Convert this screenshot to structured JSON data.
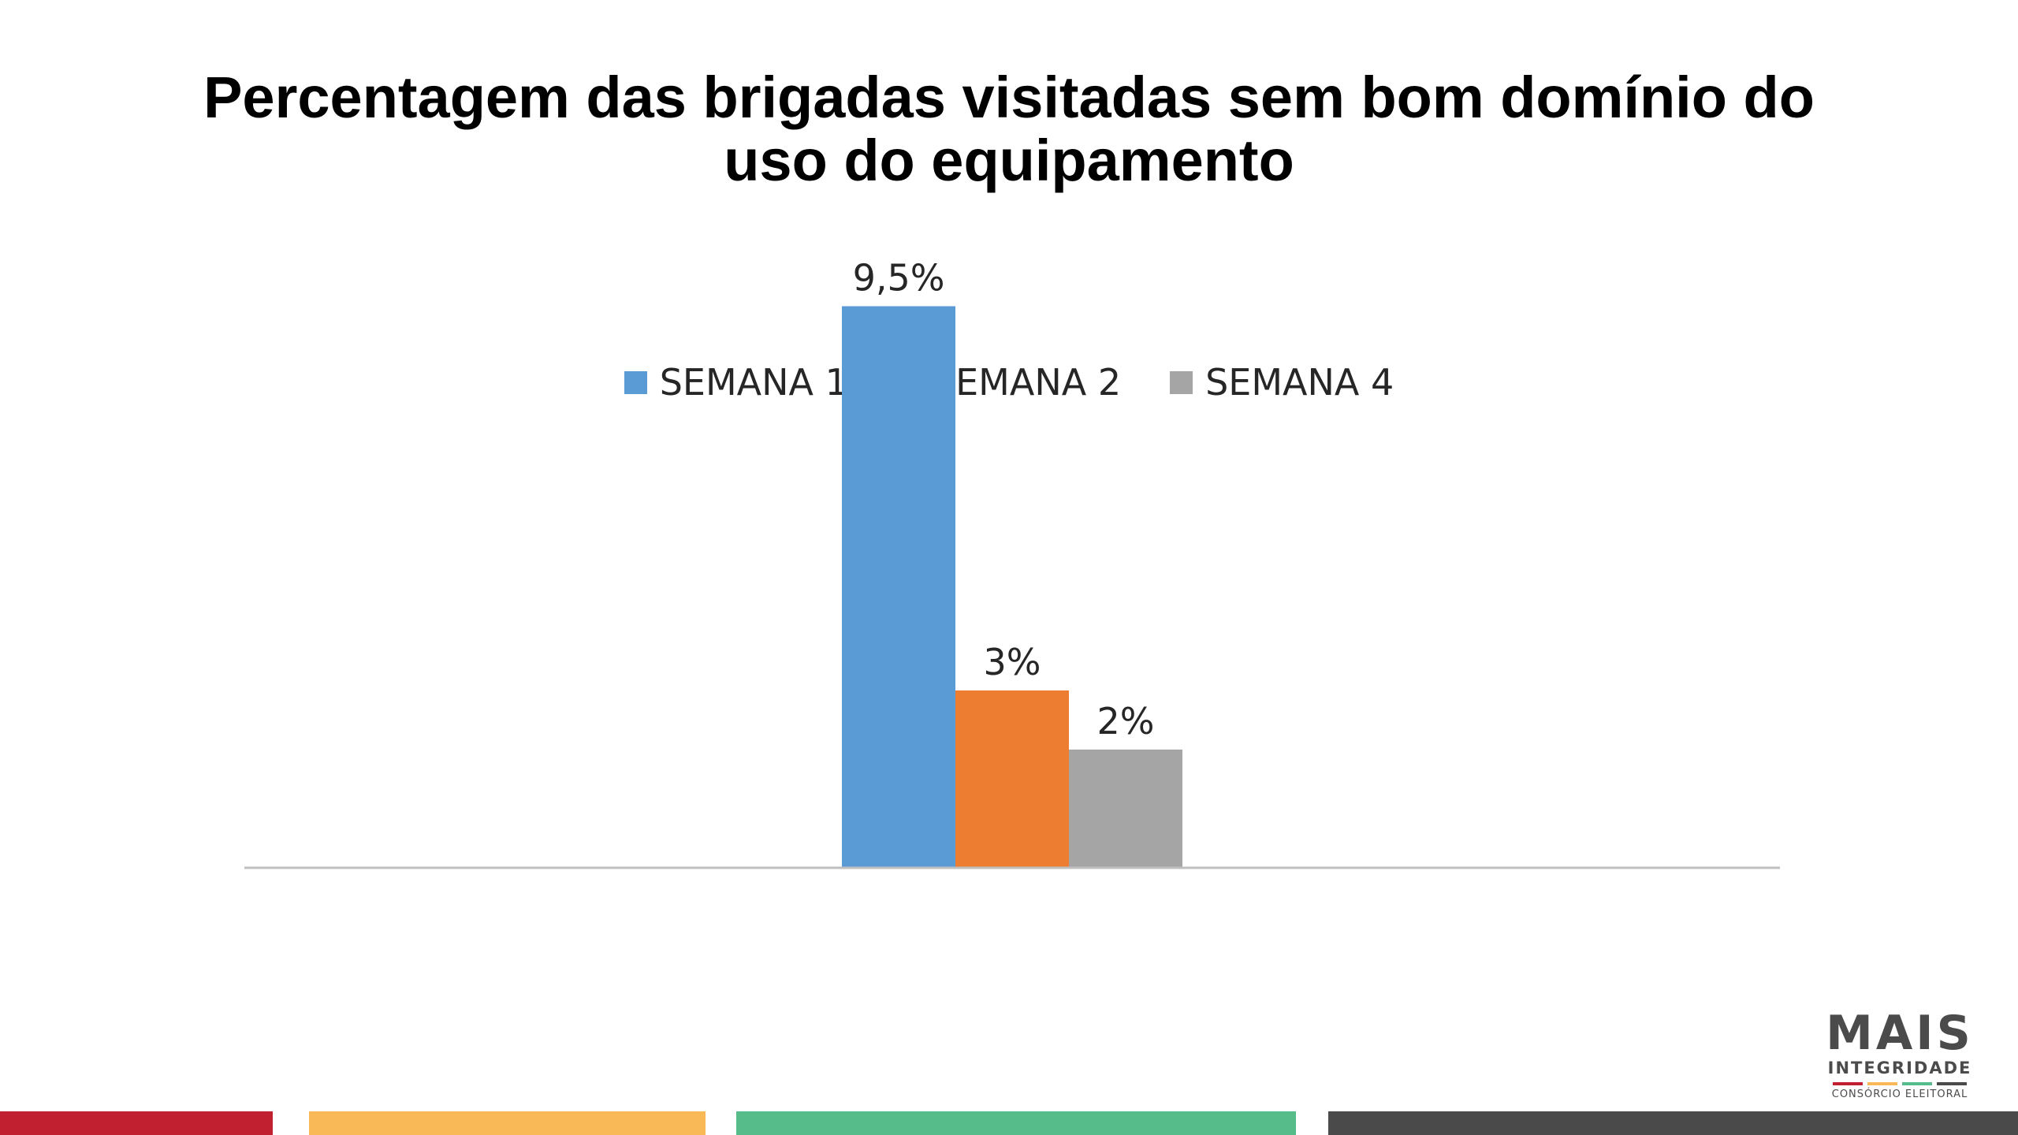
{
  "chart_data": {
    "type": "bar",
    "title": "Percentagem das brigadas visitadas sem bom domínio do uso do equipamento",
    "title_lines": [
      "Percentagem das brigadas visitadas sem bom domínio do",
      "uso do equipamento"
    ],
    "categories": [
      ""
    ],
    "series": [
      {
        "name": "SEMANA 1",
        "values": [
          9.5
        ],
        "label": "9,5%",
        "color": "#5B9BD5"
      },
      {
        "name": "SEMANA 2",
        "values": [
          3
        ],
        "label": "3%",
        "color": "#ED7D31"
      },
      {
        "name": "SEMANA 4",
        "values": [
          2
        ],
        "label": "2%",
        "color": "#A5A5A5"
      }
    ],
    "xlabel": "",
    "ylabel": "",
    "ylim": [
      0,
      10
    ],
    "grid": false,
    "legend_position": "top"
  },
  "logo": {
    "main": "MAIS",
    "sub": "INTEGRIDADE",
    "small": "CONSÓRCIO ELEITORAL",
    "line_colors": [
      "#C0202F",
      "#F9B956",
      "#56BD8A",
      "#4A4A4A"
    ]
  },
  "footer": {
    "colors": [
      "#C0202F",
      "#F9B956",
      "#56BD8A",
      "#4A4A4A"
    ]
  }
}
